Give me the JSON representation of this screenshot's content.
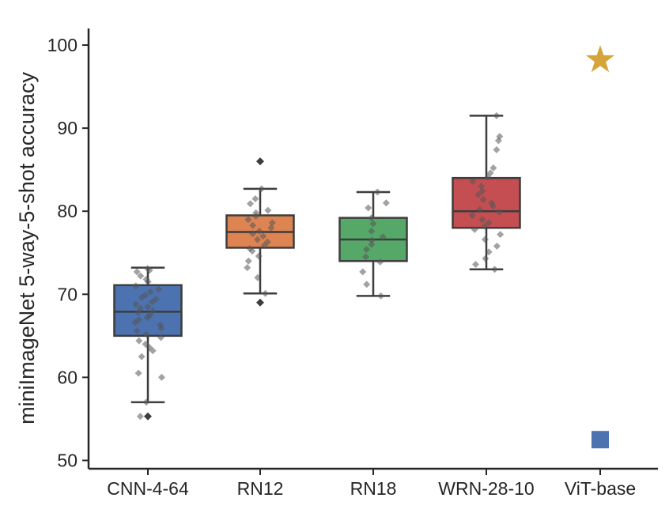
{
  "chart_data": {
    "type": "box",
    "ylabel": "miniImageNet 5-way-5-shot accuracy",
    "xlabel": "",
    "ylim": [
      49,
      102
    ],
    "yticks": [
      50,
      60,
      70,
      80,
      90,
      100
    ],
    "categories": [
      "CNN-4-64",
      "RN12",
      "RN18",
      "WRN-28-10",
      "ViT-base"
    ],
    "boxes": [
      {
        "name": "CNN-4-64",
        "color": "#4c72b0",
        "whisker_low": 57.0,
        "q1": 65.0,
        "median": 67.9,
        "q3": 71.1,
        "whisker_high": 73.2,
        "outliers": [
          55.3
        ],
        "points": [
          73.1,
          72.9,
          72.7,
          72.2,
          71.8,
          71.5,
          71.0,
          70.6,
          70.3,
          69.9,
          69.6,
          69.4,
          69.1,
          68.8,
          68.5,
          68.3,
          68.0,
          67.8,
          67.5,
          67.2,
          66.9,
          66.6,
          66.3,
          65.9,
          65.6,
          65.2,
          64.8,
          64.4,
          64.0,
          63.6,
          63.2,
          62.5,
          60.5,
          60.0,
          57.0,
          55.3
        ]
      },
      {
        "name": "RN12",
        "color": "#dd8452",
        "whisker_low": 70.1,
        "q1": 75.6,
        "median": 77.5,
        "q3": 79.5,
        "whisker_high": 82.7,
        "outliers": [
          86.0,
          69.0
        ],
        "points": [
          82.7,
          81.5,
          80.9,
          80.1,
          79.8,
          79.4,
          79.0,
          78.6,
          78.3,
          78.0,
          77.6,
          77.3,
          77.0,
          76.6,
          76.3,
          75.9,
          75.5,
          75.2,
          74.6,
          74.0,
          73.2,
          72.0,
          70.1
        ]
      },
      {
        "name": "RN18",
        "color": "#55a868",
        "whisker_low": 69.8,
        "q1": 74.0,
        "median": 76.6,
        "q3": 79.2,
        "whisker_high": 82.3,
        "outliers": [],
        "points": [
          82.3,
          81.0,
          80.4,
          79.2,
          78.5,
          77.6,
          76.9,
          76.5,
          76.0,
          75.4,
          74.5,
          73.9,
          72.7,
          71.2,
          69.8
        ]
      },
      {
        "name": "WRN-28-10",
        "color": "#c44e52",
        "whisker_low": 73.0,
        "q1": 78.0,
        "median": 80.0,
        "q3": 84.0,
        "whisker_high": 91.5,
        "outliers": [],
        "points": [
          91.5,
          89.0,
          88.5,
          87.4,
          85.2,
          84.6,
          84.1,
          83.6,
          83.0,
          82.4,
          82.0,
          81.4,
          81.0,
          80.6,
          80.2,
          79.9,
          79.5,
          79.0,
          78.6,
          78.2,
          77.8,
          77.2,
          76.6,
          75.8,
          75.1,
          74.3,
          73.6,
          73.0
        ]
      }
    ],
    "markers": [
      {
        "category": "ViT-base",
        "shape": "star",
        "value": 98.2,
        "color": "#d6a53a"
      },
      {
        "category": "ViT-base",
        "shape": "square",
        "value": 52.5,
        "color": "#4c72b0"
      }
    ]
  }
}
